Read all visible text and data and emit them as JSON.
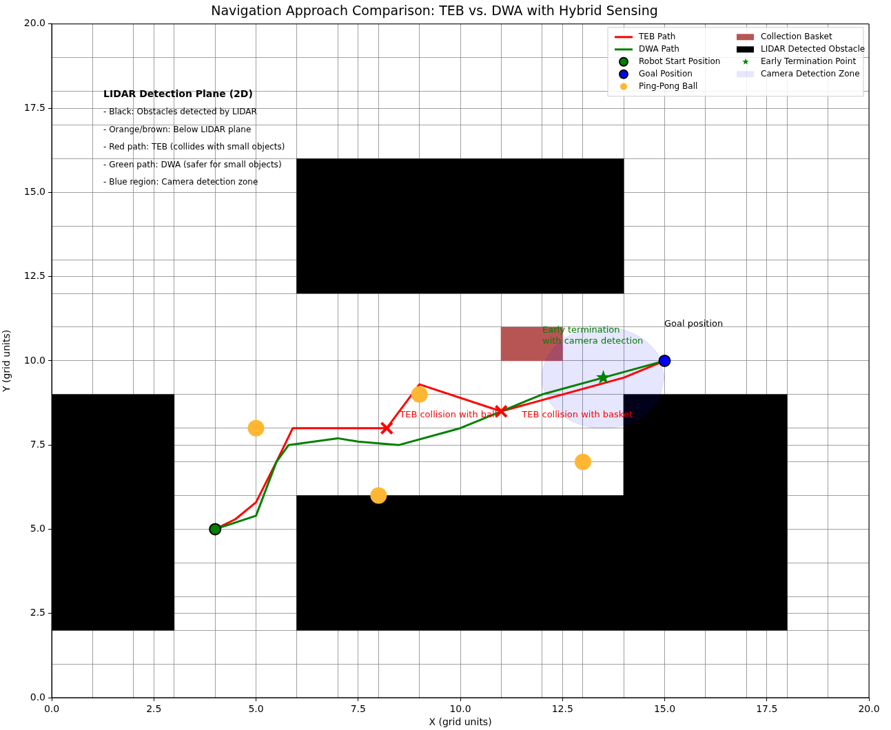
{
  "chart_data": {
    "type": "line",
    "title": "Navigation Approach Comparison: TEB vs. DWA with Hybrid Sensing",
    "xlabel": "X (grid units)",
    "ylabel": "Y (grid units)",
    "xlim": [
      0,
      20
    ],
    "ylim": [
      0,
      20
    ],
    "xticks": [
      {
        "value": 0,
        "label": "0.0"
      },
      {
        "value": 1,
        "label": null
      },
      {
        "value": 2,
        "label": null
      },
      {
        "value": 2.5,
        "label": "2.5"
      },
      {
        "value": 3,
        "label": null
      },
      {
        "value": 4,
        "label": null
      },
      {
        "value": 5,
        "label": "5.0"
      },
      {
        "value": 6,
        "label": null
      },
      {
        "value": 7,
        "label": null
      },
      {
        "value": 7.5,
        "label": "7.5"
      },
      {
        "value": 8,
        "label": null
      },
      {
        "value": 9,
        "label": null
      },
      {
        "value": 10,
        "label": "10.0"
      },
      {
        "value": 11,
        "label": null
      },
      {
        "value": 12,
        "label": null
      },
      {
        "value": 12.5,
        "label": "12.5"
      },
      {
        "value": 13,
        "label": null
      },
      {
        "value": 14,
        "label": null
      },
      {
        "value": 15,
        "label": "15.0"
      },
      {
        "value": 16,
        "label": null
      },
      {
        "value": 17,
        "label": null
      },
      {
        "value": 17.5,
        "label": "17.5"
      },
      {
        "value": 18,
        "label": null
      },
      {
        "value": 19,
        "label": null
      },
      {
        "value": 20,
        "label": "20.0"
      }
    ],
    "yticks": [
      {
        "value": 0,
        "label": "0.0"
      },
      {
        "value": 1,
        "label": null
      },
      {
        "value": 2,
        "label": null
      },
      {
        "value": 2.5,
        "label": "2.5"
      },
      {
        "value": 3,
        "label": null
      },
      {
        "value": 4,
        "label": null
      },
      {
        "value": 5,
        "label": "5.0"
      },
      {
        "value": 6,
        "label": null
      },
      {
        "value": 7,
        "label": null
      },
      {
        "value": 7.5,
        "label": "7.5"
      },
      {
        "value": 8,
        "label": null
      },
      {
        "value": 9,
        "label": null
      },
      {
        "value": 10,
        "label": "10.0"
      },
      {
        "value": 11,
        "label": null
      },
      {
        "value": 12,
        "label": null
      },
      {
        "value": 12.5,
        "label": "12.5"
      },
      {
        "value": 13,
        "label": null
      },
      {
        "value": 14,
        "label": null
      },
      {
        "value": 15,
        "label": "15.0"
      },
      {
        "value": 16,
        "label": null
      },
      {
        "value": 17,
        "label": null
      },
      {
        "value": 17.5,
        "label": "17.5"
      },
      {
        "value": 18,
        "label": null
      },
      {
        "value": 19,
        "label": null
      },
      {
        "value": 20,
        "label": "20.0"
      }
    ],
    "grid": true,
    "legend": "top right",
    "series": [
      {
        "name": "TEB Path",
        "type": "line",
        "marker": "none",
        "color": "#ff0000",
        "x": [
          4,
          4.5,
          5,
          5.5,
          5.9,
          8.2,
          9,
          11,
          14,
          15
        ],
        "values": [
          5,
          5.3,
          5.8,
          7,
          8,
          8,
          9.3,
          8.5,
          9.5,
          10
        ]
      },
      {
        "name": "DWA Path",
        "type": "line",
        "marker": "none",
        "color": "#008000",
        "x": [
          4,
          5,
          5.5,
          5.8,
          7,
          7.5,
          8.5,
          10,
          11,
          12,
          13.5,
          15
        ],
        "values": [
          5,
          5.4,
          7,
          7.5,
          7.7,
          7.6,
          7.5,
          8,
          8.5,
          9,
          9.5,
          10
        ]
      },
      {
        "name": "Robot Start Position",
        "type": "scatter",
        "marker": "circle",
        "color": "#008000",
        "x": [
          4
        ],
        "values": [
          5
        ]
      },
      {
        "name": "Goal Position",
        "type": "scatter",
        "marker": "circle",
        "color": "#0000ff",
        "x": [
          15
        ],
        "values": [
          10
        ]
      },
      {
        "name": "Ping-Pong Ball",
        "type": "bubble",
        "color": "#ffb733",
        "x": [
          5,
          8,
          9,
          13
        ],
        "values": [
          8,
          6,
          9,
          7
        ],
        "sizes": [
          1,
          1,
          1,
          1
        ]
      },
      {
        "name": "Collection Basket",
        "type": "area",
        "color": "#b75555",
        "x": [
          11,
          12.5,
          12.5,
          11,
          11
        ],
        "values": [
          10,
          10,
          11,
          11,
          10
        ]
      },
      {
        "name": "LIDAR Detected Obstacle",
        "type": "area",
        "color": "#000000",
        "x": [
          0,
          3,
          3,
          0,
          0,
          null,
          6,
          14,
          14,
          6,
          6,
          null,
          6,
          18,
          18,
          14,
          14,
          6,
          6
        ],
        "values": [
          2,
          2,
          9,
          9,
          2,
          null,
          12,
          12,
          16,
          16,
          12,
          null,
          2,
          2,
          9,
          9,
          6,
          6,
          2
        ]
      },
      {
        "name": "Early Termination Point",
        "type": "scatter",
        "marker": "star",
        "color": "#008000",
        "x": [
          13.5
        ],
        "values": [
          9.5
        ]
      },
      {
        "name": "Camera Detection Zone",
        "type": "area",
        "color": "#e6e6ff",
        "x": [
          15,
          14.8,
          14.25,
          13.5,
          12.75,
          12.2,
          12,
          12.2,
          12.75,
          13.5,
          14.25,
          14.8,
          15
        ],
        "values": [
          9.5,
          10.25,
          10.8,
          11,
          10.8,
          10.25,
          9.5,
          8.75,
          8.2,
          8,
          8.2,
          8.75,
          9.5
        ]
      },
      {
        "type": "scatter",
        "marker": "cross",
        "color": "#ff0000",
        "x": [
          8.2,
          11
        ],
        "values": [
          8,
          8.5
        ]
      }
    ],
    "annotations": [
      "LIDAR Detection Plane (2D)",
      "- Black: Obstacles detected by LIDAR",
      "- Orange/brown: Below LIDAR plane",
      "- Red path: TEB (collides with small objects)",
      "- Green path: DWA (safer for small objects)",
      "- Blue region: Camera detection zone",
      {
        "text": "TEB collision with ball",
        "x": 8.2,
        "y": 8
      },
      {
        "text": "TEB collision with basket",
        "x": 11,
        "y": 8.5
      },
      "Early termination\nwith camera detection",
      "Goal position"
    ]
  }
}
